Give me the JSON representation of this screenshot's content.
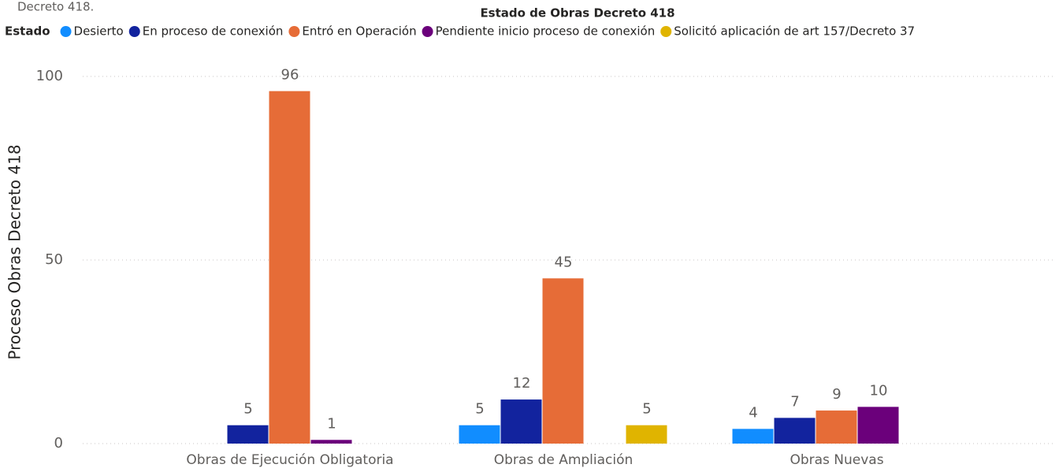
{
  "chart_data": {
    "type": "grouped-bar",
    "caption": "Decreto 418.",
    "title": "Estado de Obras Decreto 418",
    "legend_title": "Estado",
    "y_label": "Proceso Obras Decreto 418",
    "categories": [
      "Obras de Ejecución Obligatoria",
      "Obras de Ampliación",
      "Obras Nuevas"
    ],
    "series": [
      {
        "name": "Desierto",
        "color": "#118DFF",
        "values": [
          null,
          5,
          4
        ]
      },
      {
        "name": "En proceso de conexión",
        "color": "#12239E",
        "values": [
          5,
          12,
          7
        ]
      },
      {
        "name": "Entró en Operación",
        "color": "#E66C37",
        "values": [
          96,
          45,
          9
        ]
      },
      {
        "name": "Pendiente inicio proceso de conexión",
        "color": "#6B007B",
        "values": [
          1,
          null,
          10
        ]
      },
      {
        "name": "Solicitó aplicación de art 157/Decreto 37",
        "color": "#E0B400",
        "values": [
          null,
          5,
          null
        ]
      }
    ],
    "ylim": [
      0,
      100
    ],
    "yticks": [
      0,
      50,
      100
    ],
    "grid": true,
    "legend": "top"
  }
}
